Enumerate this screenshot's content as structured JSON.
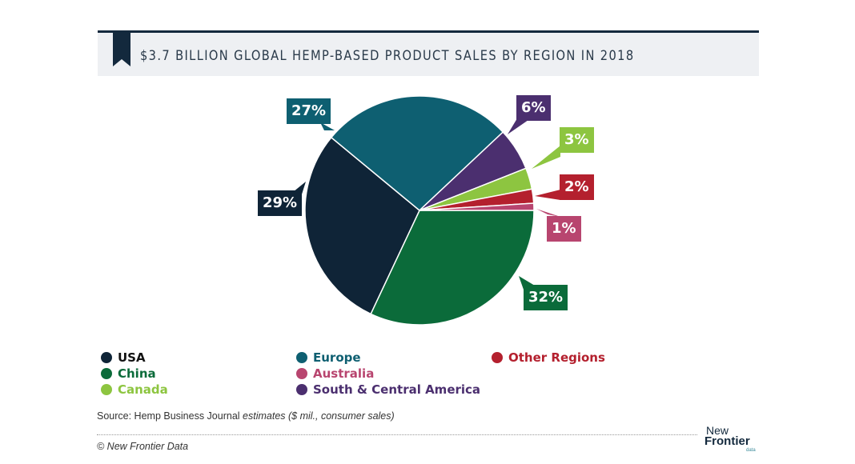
{
  "title": "$3.7 BILLION GLOBAL HEMP-BASED PRODUCT SALES BY REGION IN 2018",
  "chart_data": {
    "type": "pie",
    "title": "$3.7 BILLION GLOBAL HEMP-BASED PRODUCT SALES BY REGION IN 2018",
    "slices": [
      {
        "name": "China",
        "value": 32,
        "label": "32%",
        "color": "#0b6b3a"
      },
      {
        "name": "USA",
        "value": 29,
        "label": "29%",
        "color": "#0f2437"
      },
      {
        "name": "Europe",
        "value": 27,
        "label": "27%",
        "color": "#0e5f71"
      },
      {
        "name": "South & Central America",
        "value": 6,
        "label": "6%",
        "color": "#4b2f6f"
      },
      {
        "name": "Canada",
        "value": 3,
        "label": "3%",
        "color": "#8dc540"
      },
      {
        "name": "Other Regions",
        "value": 2,
        "label": "2%",
        "color": "#b4202e"
      },
      {
        "name": "Australia",
        "value": 1,
        "label": "1%",
        "color": "#b8456f"
      }
    ],
    "legend": [
      {
        "name": "USA",
        "color": "#0f2437"
      },
      {
        "name": "Europe",
        "color": "#0e5f71"
      },
      {
        "name": "Other Regions",
        "color": "#b4202e"
      },
      {
        "name": "China",
        "color": "#0b6b3a"
      },
      {
        "name": "Australia",
        "color": "#b8456f"
      },
      {
        "name": "Canada",
        "color": "#8dc540"
      },
      {
        "name": "South & Central America",
        "color": "#4b2f6f"
      }
    ],
    "legend_placement": "bottom"
  },
  "source": {
    "prefix": "Source: Hemp Business Journal ",
    "italic": "estimates ($ mil., consumer sales)"
  },
  "copyright": "© New Frontier Data",
  "logo": {
    "line1": "New",
    "line2": "Frontier",
    "line3": "data"
  }
}
